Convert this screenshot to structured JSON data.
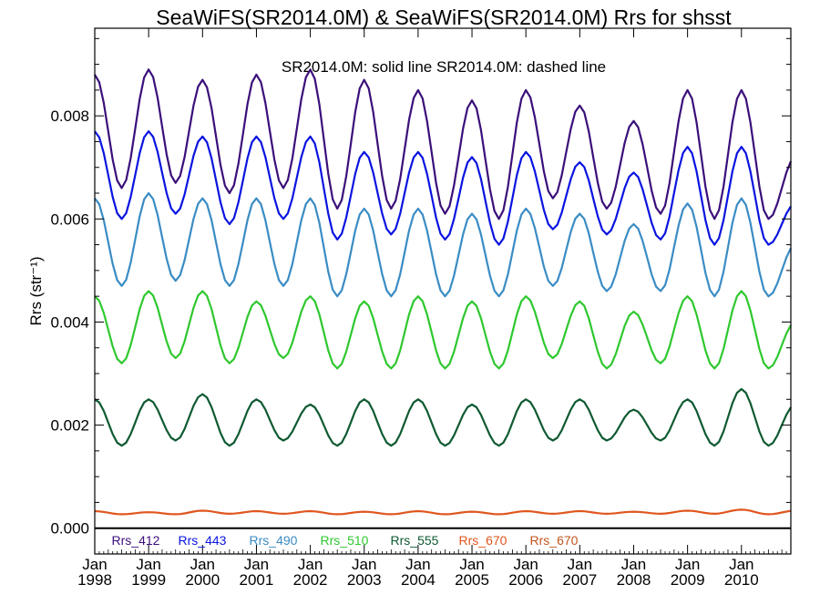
{
  "chart_data": {
    "type": "line",
    "title": "SeaWiFS(SR2014.0M) & SeaWiFS(SR2014.0M)  Rrs for shsst",
    "annotation": "SR2014.0M: solid line   SR2014.0M: dashed line",
    "ylabel": "Rrs (str⁻¹)",
    "xlim": [
      "1998-01",
      "2010-12"
    ],
    "ylim": [
      -0.0005,
      0.0097
    ],
    "y_ticks": [
      0.0,
      0.002,
      0.004,
      0.006,
      0.008
    ],
    "y_tick_labels": [
      "0.000",
      "0.002",
      "0.004",
      "0.006",
      "0.008"
    ],
    "x_ticks": [
      {
        "month": "Jan",
        "year": "1998"
      },
      {
        "month": "Jan",
        "year": "1999"
      },
      {
        "month": "Jan",
        "year": "2000"
      },
      {
        "month": "Jan",
        "year": "2001"
      },
      {
        "month": "Jan",
        "year": "2002"
      },
      {
        "month": "Jan",
        "year": "2003"
      },
      {
        "month": "Jan",
        "year": "2004"
      },
      {
        "month": "Jan",
        "year": "2005"
      },
      {
        "month": "Jan",
        "year": "2006"
      },
      {
        "month": "Jan",
        "year": "2007"
      },
      {
        "month": "Jan",
        "year": "2008"
      },
      {
        "month": "Jan",
        "year": "2009"
      },
      {
        "month": "Jan",
        "year": "2010"
      }
    ],
    "grid": false,
    "legend_position": "bottom",
    "series": [
      {
        "name": "Rrs_412",
        "color": "#3b0f7a",
        "annual_max": [
          0.0088,
          0.0089,
          0.0087,
          0.0088,
          0.0089,
          0.0087,
          0.0085,
          0.0083,
          0.0085,
          0.0082,
          0.0079,
          0.0085,
          0.0085,
          0.0072
        ],
        "annual_min": [
          0.0066,
          0.0067,
          0.0065,
          0.0066,
          0.0062,
          0.0062,
          0.0061,
          0.006,
          0.0064,
          0.0062,
          0.0061,
          0.006,
          0.006
        ]
      },
      {
        "name": "Rrs_443",
        "color": "#0a14e0",
        "annual_max": [
          0.0077,
          0.0077,
          0.0076,
          0.0076,
          0.0076,
          0.0073,
          0.0073,
          0.0072,
          0.0073,
          0.0071,
          0.0069,
          0.0074,
          0.0074,
          0.0063
        ],
        "annual_min": [
          0.006,
          0.0061,
          0.0059,
          0.006,
          0.0056,
          0.0057,
          0.0056,
          0.0055,
          0.0058,
          0.0057,
          0.0056,
          0.0055,
          0.0055
        ]
      },
      {
        "name": "Rrs_490",
        "color": "#3a8cc4",
        "annual_max": [
          0.0064,
          0.0065,
          0.0064,
          0.0064,
          0.0064,
          0.0062,
          0.0062,
          0.0061,
          0.0062,
          0.0061,
          0.0059,
          0.0063,
          0.0064,
          0.0055
        ],
        "annual_min": [
          0.0047,
          0.0048,
          0.0047,
          0.0047,
          0.0045,
          0.0045,
          0.0045,
          0.0045,
          0.0047,
          0.0046,
          0.0046,
          0.0045,
          0.0045
        ]
      },
      {
        "name": "Rrs_510",
        "color": "#2ec82e",
        "annual_max": [
          0.0045,
          0.0046,
          0.0046,
          0.0044,
          0.0045,
          0.0044,
          0.0045,
          0.0044,
          0.0045,
          0.0044,
          0.0042,
          0.0045,
          0.0046,
          0.004
        ],
        "annual_min": [
          0.0032,
          0.0033,
          0.0032,
          0.0033,
          0.0031,
          0.0031,
          0.0031,
          0.0031,
          0.0033,
          0.0031,
          0.0032,
          0.0031,
          0.0031
        ]
      },
      {
        "name": "Rrs_555",
        "color": "#0f5a32",
        "annual_max": [
          0.0025,
          0.0025,
          0.0026,
          0.0025,
          0.0024,
          0.0025,
          0.0025,
          0.0024,
          0.0025,
          0.0025,
          0.0023,
          0.0025,
          0.0027,
          0.0024
        ],
        "annual_min": [
          0.0016,
          0.0017,
          0.0016,
          0.0017,
          0.0016,
          0.0016,
          0.0016,
          0.0016,
          0.0017,
          0.0017,
          0.0017,
          0.0016,
          0.0016
        ]
      },
      {
        "name": "Rrs_670",
        "color": "#e0561e",
        "annual_max": [
          0.00033,
          0.00031,
          0.00034,
          0.00033,
          0.00033,
          0.00032,
          0.00033,
          0.00032,
          0.00033,
          0.00033,
          0.00032,
          0.00034,
          0.00036,
          0.00034
        ],
        "annual_min": [
          0.00027,
          0.00027,
          0.00028,
          0.00028,
          0.00027,
          0.00027,
          0.00027,
          0.00027,
          0.00028,
          0.00028,
          0.00028,
          0.00028,
          0.00027
        ]
      }
    ],
    "legend_extra": {
      "name": "Rrs_670",
      "color": "#c2561e"
    }
  }
}
